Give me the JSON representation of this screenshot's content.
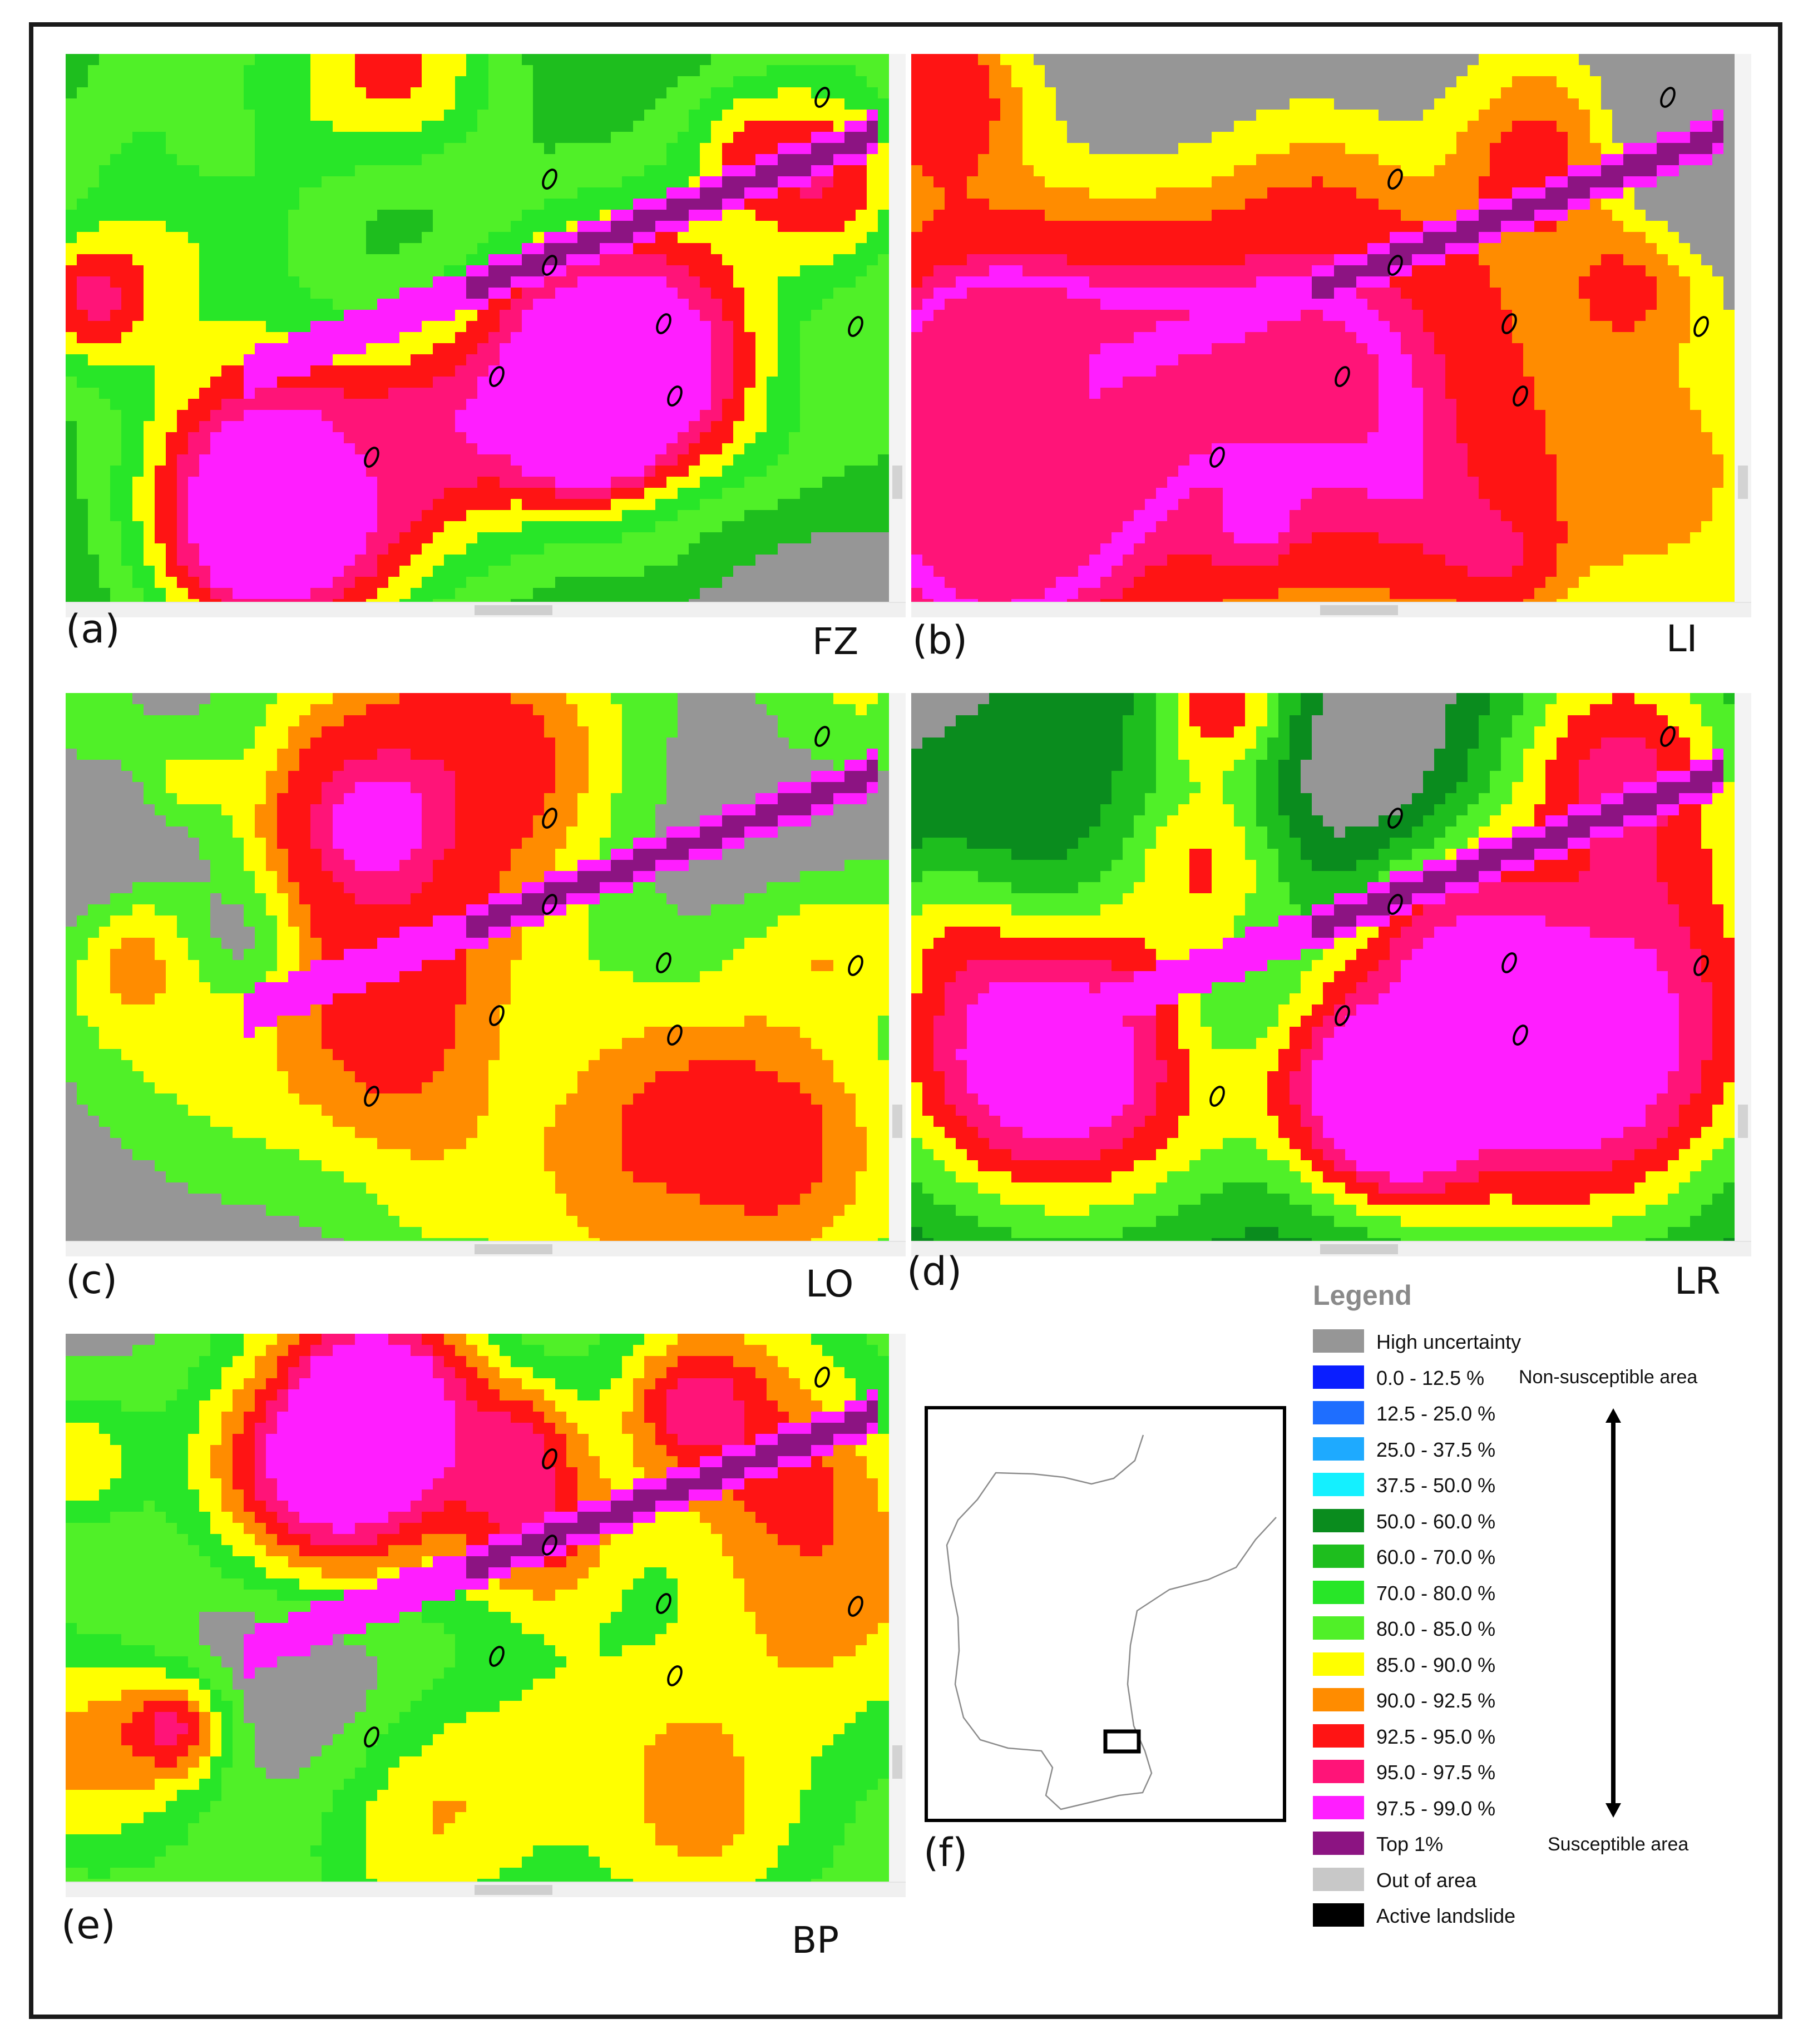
{
  "panels": [
    {
      "letter": "(a)",
      "code": "FZ"
    },
    {
      "letter": "(b)",
      "code": "LI"
    },
    {
      "letter": "(c)",
      "code": "LO"
    },
    {
      "letter": "(d)",
      "code": "LR"
    },
    {
      "letter": "(e)",
      "code": "BP"
    }
  ],
  "overview": {
    "letter": "(f)"
  },
  "legend": {
    "title": "Legend",
    "items": [
      {
        "label": "High uncertainty",
        "color": "#969696"
      },
      {
        "label": "0.0 - 12.5 %",
        "color": "#0a1eff"
      },
      {
        "label": "12.5 - 25.0 %",
        "color": "#1e6eff"
      },
      {
        "label": "25.0 - 37.5 %",
        "color": "#1eaaff"
      },
      {
        "label": "37.5 - 50.0 %",
        "color": "#14f0ff"
      },
      {
        "label": "50.0 - 60.0 %",
        "color": "#0a8c1e"
      },
      {
        "label": "60.0 - 70.0 %",
        "color": "#1ebe1e"
      },
      {
        "label": "70.0 - 80.0 %",
        "color": "#28e628"
      },
      {
        "label": "80.0 - 85.0 %",
        "color": "#50f028"
      },
      {
        "label": "85.0 - 90.0 %",
        "color": "#ffff00"
      },
      {
        "label": "90.0 - 92.5 %",
        "color": "#ff8c00"
      },
      {
        "label": "92.5 - 95.0 %",
        "color": "#ff1414"
      },
      {
        "label": "95.0 - 97.5 %",
        "color": "#ff1478"
      },
      {
        "label": "97.5 - 99.0 %",
        "color": "#ff1eff"
      },
      {
        "label": "Top 1%",
        "color": "#8c1482"
      },
      {
        "label": "Out of area",
        "color": "#c8c8c8"
      },
      {
        "label": "Active landslide",
        "color": "#000000"
      }
    ],
    "non_susceptible_label": "Non-susceptible area",
    "susceptible_label": "Susceptible area"
  }
}
